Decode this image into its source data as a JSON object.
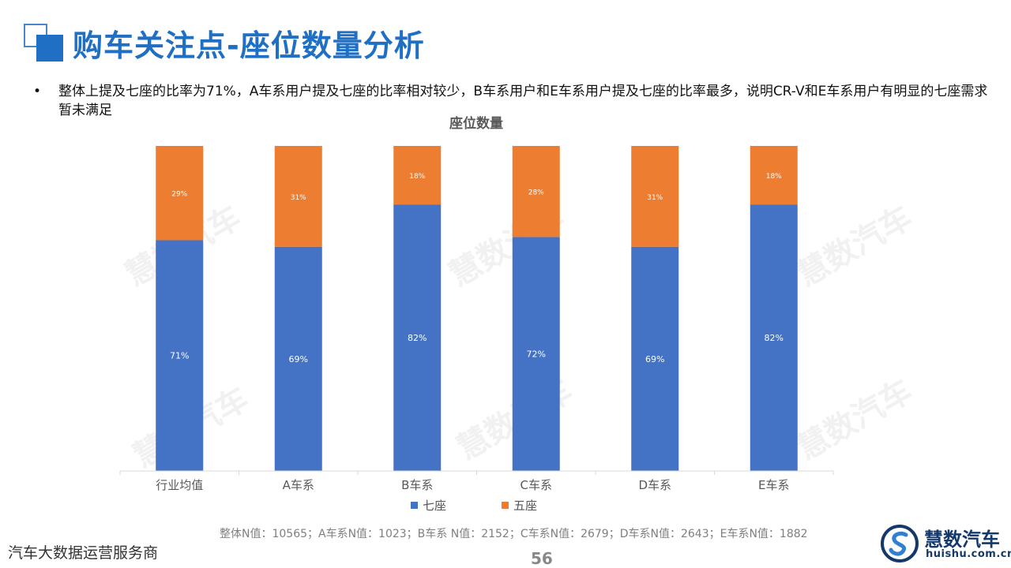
{
  "header": {
    "title": "购车关注点-座位数量分析"
  },
  "bullet": {
    "marker": "•",
    "text": "整体上提及七座的比率为71%，A车系用户提及七座的比率相对较少，B车系用户和E车系用户提及七座的比率最多，说明CR-V和E车系用户有明显的七座需求暂未满足"
  },
  "chart_data": {
    "type": "bar",
    "stacked": true,
    "title": "座位数量",
    "categories": [
      "行业均值",
      "A车系",
      "B车系",
      "C车系",
      "D车系",
      "E车系"
    ],
    "series": [
      {
        "name": "七座",
        "color": "#4472c4",
        "values": [
          71,
          69,
          82,
          72,
          69,
          82
        ],
        "labels": [
          "71%",
          "69%",
          "82%",
          "72%",
          "69%",
          "82%"
        ]
      },
      {
        "name": "五座",
        "color": "#ed7d31",
        "values": [
          29,
          31,
          18,
          28,
          31,
          18
        ],
        "labels": [
          "29%",
          "31%",
          "18%",
          "28%",
          "31%",
          "18%"
        ]
      }
    ],
    "ylim": [
      0,
      100
    ],
    "grid": false,
    "legend": "bottom"
  },
  "footnote": "整体N值：10565；A车系N值：1023；B车系 N值：2152；C车系N值：2679；D车系N值：2643；E车系N值：1882",
  "footer": {
    "left_text": "汽车大数据运营服务商",
    "page_number": "56"
  },
  "logo": {
    "name": "慧数汽车",
    "url": "huishu.com.cn"
  },
  "watermark": "慧数汽车"
}
